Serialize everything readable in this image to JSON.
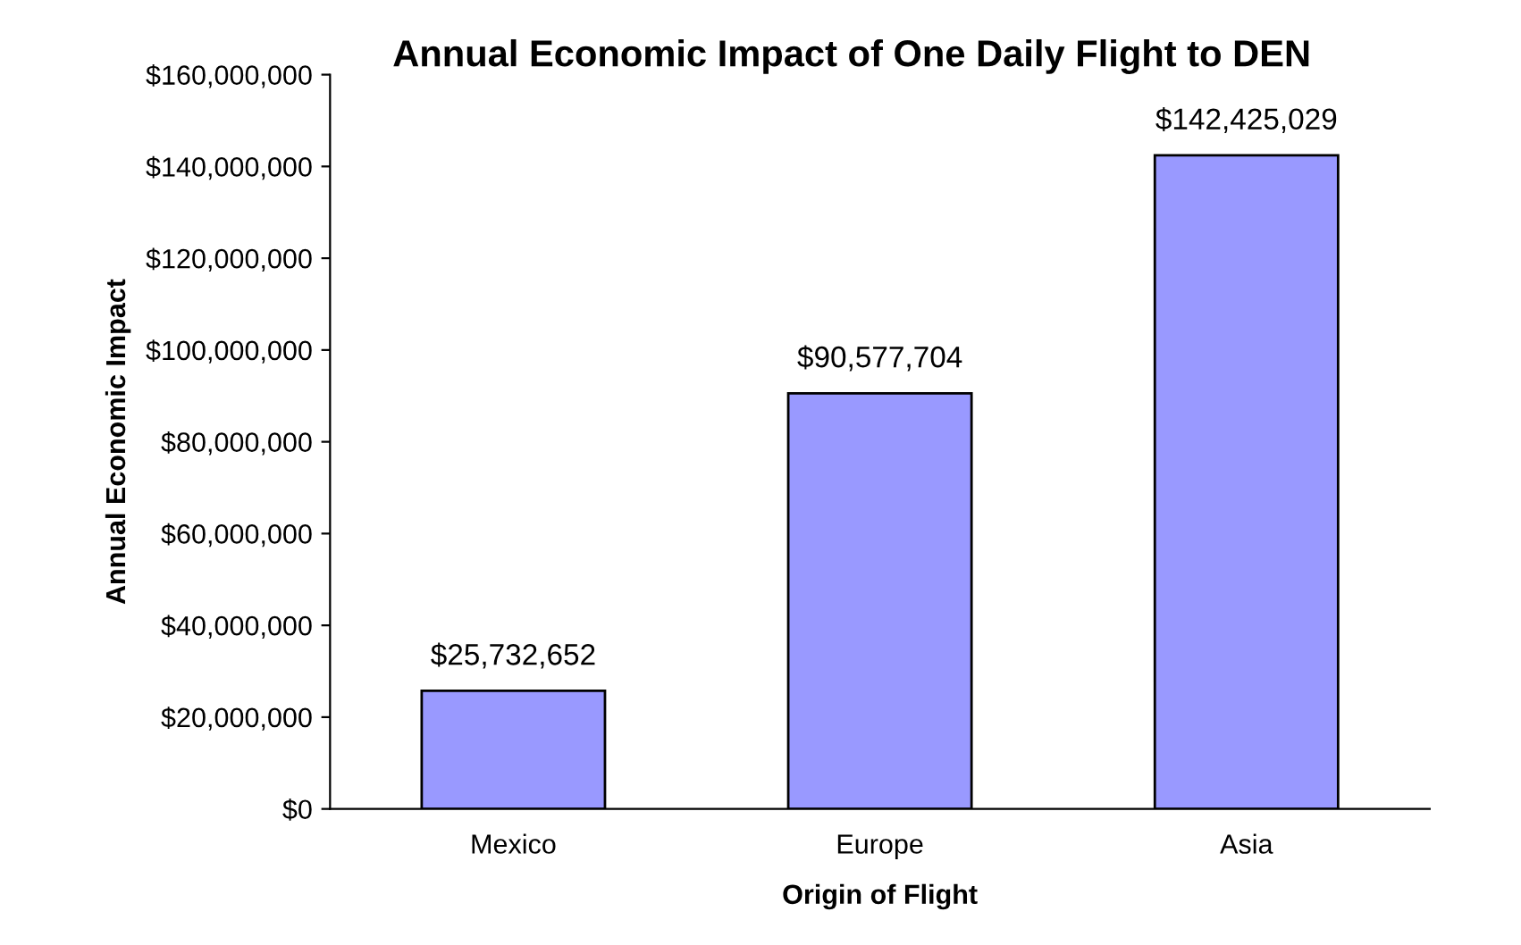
{
  "chart_data": {
    "type": "bar",
    "title": "Annual Economic Impact of One Daily Flight to DEN",
    "xlabel": "Origin of Flight",
    "ylabel": "Annual Economic Impact",
    "categories": [
      "Mexico",
      "Europe",
      "Asia"
    ],
    "values": [
      25732652,
      90577704,
      142425029
    ],
    "value_labels": [
      "$25,732,652",
      "$90,577,704",
      "$142,425,029"
    ],
    "color": "#9999ff",
    "ylim": [
      0,
      160000000
    ],
    "yticks": [
      {
        "value": 0,
        "label": "$0"
      },
      {
        "value": 20000000,
        "label": "$20,000,000"
      },
      {
        "value": 40000000,
        "label": "$40,000,000"
      },
      {
        "value": 60000000,
        "label": "$60,000,000"
      },
      {
        "value": 80000000,
        "label": "$80,000,000"
      },
      {
        "value": 100000000,
        "label": "$100,000,000"
      },
      {
        "value": 120000000,
        "label": "$120,000,000"
      },
      {
        "value": 140000000,
        "label": "$140,000,000"
      },
      {
        "value": 160000000,
        "label": "$160,000,000"
      }
    ],
    "grid": false
  }
}
